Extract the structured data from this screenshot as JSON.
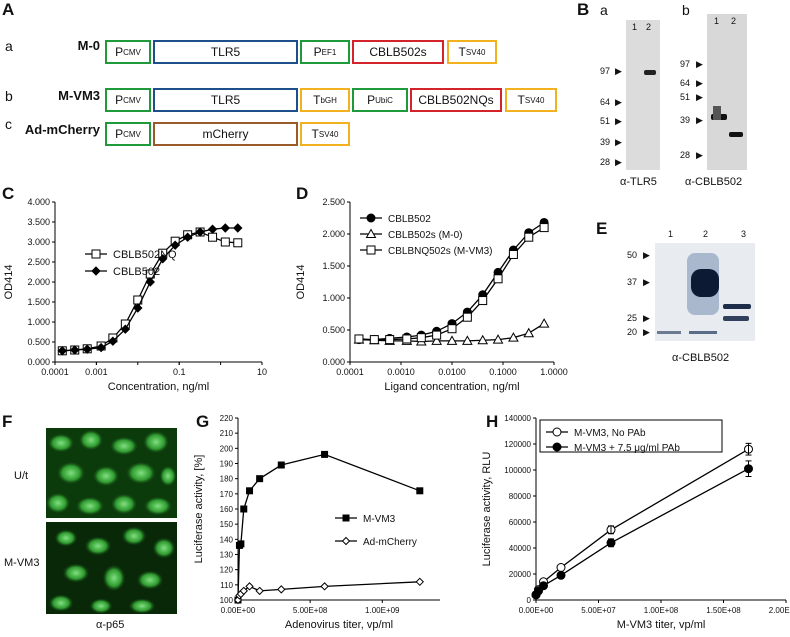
{
  "panelA": {
    "letter": "A",
    "rows": [
      {
        "sub": "a",
        "name": "M-0",
        "boxes": [
          {
            "main": "P",
            "sub": "CMV",
            "color": "green"
          },
          {
            "main": "TLR5",
            "sub": "",
            "color": "blue"
          },
          {
            "main": "P",
            "sub": "EF1",
            "color": "green"
          },
          {
            "main": "CBLB502s",
            "sub": "",
            "color": "red"
          },
          {
            "main": "T",
            "sub": "SV40",
            "color": "orange"
          }
        ]
      },
      {
        "sub": "b",
        "name": "M-VM3",
        "boxes": [
          {
            "main": "P",
            "sub": "CMV",
            "color": "green"
          },
          {
            "main": "TLR5",
            "sub": "",
            "color": "blue"
          },
          {
            "main": "T",
            "sub": "bGH",
            "color": "orange"
          },
          {
            "main": "P",
            "sub": "UbiC",
            "color": "green"
          },
          {
            "main": "CBLB502NQs",
            "sub": "",
            "color": "red"
          },
          {
            "main": "T",
            "sub": "SV40",
            "color": "orange"
          }
        ]
      },
      {
        "sub": "c",
        "name": "Ad-mCherry",
        "boxes": [
          {
            "main": "P",
            "sub": "CMV",
            "color": "green"
          },
          {
            "main": "mCherry",
            "sub": "",
            "color": "brown"
          },
          {
            "main": "T",
            "sub": "SV40",
            "color": "orange"
          }
        ]
      }
    ]
  },
  "panelB": {
    "letter": "B",
    "blot_a": {
      "sub": "a",
      "lanes": [
        "1",
        "2"
      ],
      "markers": [
        "97",
        "64",
        "51",
        "39",
        "28"
      ],
      "caption": "α-TLR5"
    },
    "blot_b": {
      "sub": "b",
      "lanes": [
        "1",
        "2"
      ],
      "markers": [
        "97",
        "64",
        "51",
        "39",
        "28"
      ],
      "caption": "α-CBLB502"
    }
  },
  "panelE": {
    "letter": "E",
    "lanes": [
      "1",
      "2",
      "3"
    ],
    "markers": [
      "50",
      "37",
      "25",
      "20"
    ],
    "caption": "α-CBLB502"
  },
  "panelF": {
    "letter": "F",
    "labels": [
      "U/t",
      "M-VM3"
    ],
    "caption": "α-p65"
  },
  "chart_data": [
    {
      "panel": "C",
      "type": "line",
      "xscale": "log",
      "xlabel": "Concentration, ng/ml",
      "ylabel": "OD414",
      "xlim": [
        0.0001,
        10
      ],
      "ylim": [
        0,
        4
      ],
      "xticks": [
        "0.0001",
        "0.001",
        "0.1",
        "10"
      ],
      "yticks": [
        "0.000",
        "0.500",
        "1.000",
        "1.500",
        "2.000",
        "2.500",
        "3.000",
        "3.500",
        "4.000"
      ],
      "legend": "top-left",
      "series": [
        {
          "name": "CBLB502NQ",
          "marker": "open-square",
          "x": [
            0.00015,
            0.0003,
            0.0006,
            0.0013,
            0.0025,
            0.005,
            0.01,
            0.02,
            0.04,
            0.08,
            0.16,
            0.32,
            0.64,
            1.3,
            2.6
          ],
          "y": [
            0.28,
            0.3,
            0.33,
            0.4,
            0.6,
            0.95,
            1.55,
            2.2,
            2.72,
            3.02,
            3.18,
            3.25,
            3.12,
            3.0,
            2.98
          ]
        },
        {
          "name": "CBLB502",
          "marker": "filled-diamond",
          "x": [
            0.00015,
            0.0003,
            0.0006,
            0.0013,
            0.0025,
            0.005,
            0.01,
            0.02,
            0.04,
            0.08,
            0.16,
            0.32,
            0.64,
            1.3,
            2.6
          ],
          "y": [
            0.28,
            0.3,
            0.32,
            0.36,
            0.52,
            0.82,
            1.35,
            2.0,
            2.58,
            2.92,
            3.12,
            3.25,
            3.32,
            3.35,
            3.35
          ]
        }
      ]
    },
    {
      "panel": "D",
      "type": "line",
      "xscale": "log",
      "xlabel": "Ligand concentration, ng/ml",
      "ylabel": "OD414",
      "xlim": [
        0.0001,
        1
      ],
      "ylim": [
        0,
        2.5
      ],
      "xticks": [
        "0.0001",
        "0.0010",
        "0.0100",
        "0.1000",
        "1.0000"
      ],
      "yticks": [
        "0.000",
        "0.500",
        "1.000",
        "1.500",
        "2.000",
        "2.500"
      ],
      "legend": "top-left",
      "series": [
        {
          "name": "CBLB502",
          "marker": "filled-circle",
          "x": [
            0.00015,
            0.0003,
            0.0006,
            0.0013,
            0.0025,
            0.005,
            0.01,
            0.02,
            0.04,
            0.08,
            0.16,
            0.32,
            0.64
          ],
          "y": [
            0.35,
            0.35,
            0.37,
            0.39,
            0.42,
            0.48,
            0.6,
            0.78,
            1.05,
            1.4,
            1.75,
            2.02,
            2.18
          ]
        },
        {
          "name": "CBLB502s (M-0)",
          "marker": "open-triangle",
          "x": [
            0.00015,
            0.0003,
            0.0006,
            0.0013,
            0.0025,
            0.005,
            0.01,
            0.02,
            0.04,
            0.08,
            0.16,
            0.32,
            0.64
          ],
          "y": [
            0.35,
            0.34,
            0.33,
            0.33,
            0.32,
            0.33,
            0.33,
            0.33,
            0.34,
            0.35,
            0.38,
            0.45,
            0.6
          ]
        },
        {
          "name": "CBLBNQ502s (M-VM3)",
          "marker": "open-square",
          "x": [
            0.00015,
            0.0003,
            0.0006,
            0.0013,
            0.0025,
            0.005,
            0.01,
            0.02,
            0.04,
            0.08,
            0.16,
            0.32,
            0.64
          ],
          "y": [
            0.36,
            0.35,
            0.35,
            0.36,
            0.38,
            0.42,
            0.52,
            0.7,
            0.96,
            1.3,
            1.68,
            1.95,
            2.1
          ]
        }
      ]
    },
    {
      "panel": "G",
      "type": "line",
      "xlabel": "Adenovirus titer, vp/ml",
      "ylabel": "Luciferase activity, [%]",
      "xlim": [
        0,
        1400000000
      ],
      "ylim": [
        100,
        220
      ],
      "xticks": [
        "0.00E+00",
        "5.00E+08",
        "1.00E+09"
      ],
      "yticks": [
        "100",
        "110",
        "120",
        "130",
        "140",
        "150",
        "160",
        "170",
        "180",
        "190",
        "200",
        "210",
        "220"
      ],
      "legend": "right",
      "series": [
        {
          "name": "M-VM3",
          "marker": "filled-square",
          "x": [
            0,
            10000000,
            20000000,
            40000000,
            80000000,
            150000000,
            300000000,
            600000000,
            1260000000
          ],
          "y": [
            100,
            136,
            137,
            160,
            172,
            180,
            189,
            196,
            172
          ]
        },
        {
          "name": "Ad-mCherry",
          "marker": "open-diamond",
          "x": [
            0,
            10000000,
            20000000,
            40000000,
            80000000,
            150000000,
            300000000,
            600000000,
            1260000000
          ],
          "y": [
            100,
            103,
            104,
            106,
            109,
            106,
            107,
            109,
            112
          ]
        }
      ]
    },
    {
      "panel": "H",
      "type": "line",
      "xlabel": "M-VM3 titer, vp/ml",
      "ylabel": "Luciferase activity, RLU",
      "xlim": [
        0,
        200000000
      ],
      "ylim": [
        0,
        140000
      ],
      "xticks": [
        "0.00E+00",
        "5.00E+07",
        "1.00E+08",
        "1.50E+08",
        "2.00E+08"
      ],
      "yticks": [
        "0",
        "20000",
        "40000",
        "60000",
        "80000",
        "100000",
        "120000",
        "140000"
      ],
      "legend": "top-left",
      "series": [
        {
          "name": "M-VM3, No PAb",
          "marker": "open-circle",
          "x": [
            0,
            2000000,
            6000000,
            20000000,
            60000000,
            170000000
          ],
          "y": [
            4000,
            8000,
            14000,
            25000,
            54000,
            116000
          ]
        },
        {
          "name": "M-VM3 + 7.5 μg/ml PAb",
          "marker": "filled-circle",
          "x": [
            0,
            2000000,
            6000000,
            20000000,
            60000000,
            170000000
          ],
          "y": [
            4000,
            7000,
            11000,
            19000,
            44000,
            101000
          ]
        }
      ]
    }
  ]
}
